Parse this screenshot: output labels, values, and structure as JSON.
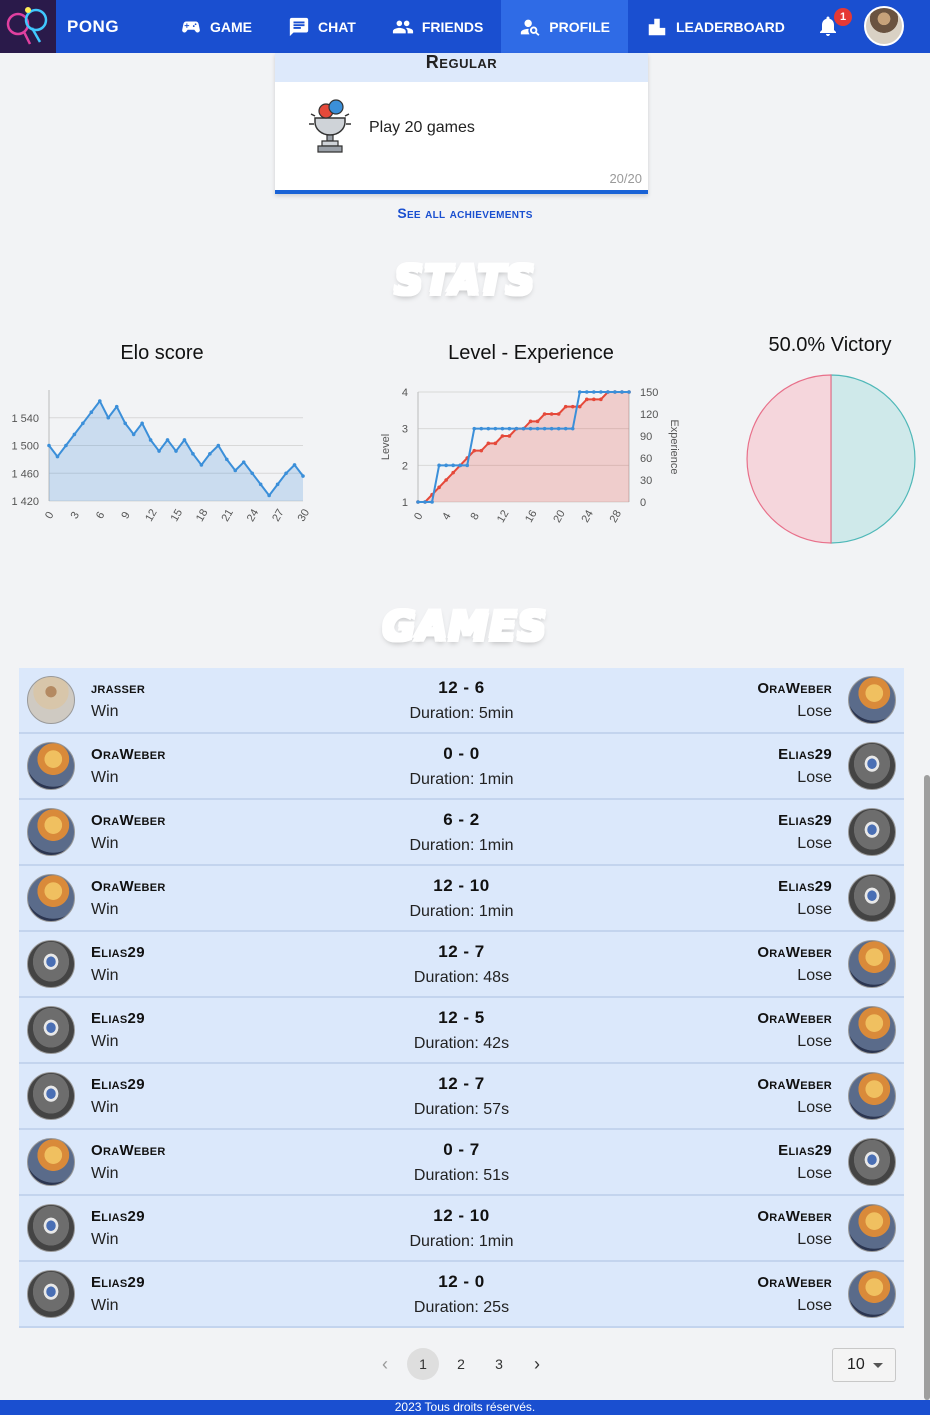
{
  "navbar": {
    "brand": "PONG",
    "items": [
      {
        "label": "GAME",
        "icon": "gamepad-icon"
      },
      {
        "label": "CHAT",
        "icon": "chat-icon"
      },
      {
        "label": "FRIENDS",
        "icon": "friends-icon"
      },
      {
        "label": "PROFILE",
        "icon": "profile-icon",
        "active": true
      },
      {
        "label": "LEADERBOARD",
        "icon": "leaderboard-icon"
      }
    ],
    "notification_count": "1"
  },
  "achievement": {
    "title": "Regular",
    "description": "Play 20 games",
    "progress": "20/20"
  },
  "see_all_label": "See all achievements",
  "stats_title": "STATS",
  "games_title": "GAMES",
  "chart_data": [
    {
      "type": "area",
      "title": "Elo score",
      "x": [
        0,
        1,
        2,
        3,
        4,
        5,
        6,
        7,
        8,
        9,
        10,
        11,
        12,
        13,
        14,
        15,
        16,
        17,
        18,
        19,
        20,
        21,
        22,
        23,
        24,
        25,
        26,
        27,
        28,
        29,
        30
      ],
      "values": [
        1500,
        1484,
        1500,
        1516,
        1532,
        1548,
        1564,
        1540,
        1556,
        1532,
        1516,
        1532,
        1508,
        1492,
        1508,
        1492,
        1508,
        1488,
        1472,
        1488,
        1500,
        1480,
        1464,
        1476,
        1460,
        1444,
        1428,
        1444,
        1460,
        1472,
        1456
      ],
      "xticks": [
        "0",
        "3",
        "6",
        "9",
        "12",
        "15",
        "18",
        "21",
        "24",
        "27",
        "30"
      ],
      "yticks": [
        "1 420",
        "1 460",
        "1 500",
        "1 540"
      ],
      "ylim": [
        1420,
        1580
      ]
    },
    {
      "type": "line",
      "title": "Level - Experience",
      "ylabel": "Level",
      "y2label": "Experience",
      "x": [
        0,
        1,
        2,
        3,
        4,
        5,
        6,
        7,
        8,
        9,
        10,
        11,
        12,
        13,
        14,
        15,
        16,
        17,
        18,
        19,
        20,
        21,
        22,
        23,
        24,
        25,
        26,
        27,
        28,
        29,
        30
      ],
      "xticks": [
        "0",
        "4",
        "8",
        "12",
        "16",
        "20",
        "24",
        "28"
      ],
      "yticks": [
        "1",
        "2",
        "3",
        "4"
      ],
      "y2ticks": [
        "0",
        "30",
        "60",
        "90",
        "120",
        "150"
      ],
      "series": [
        {
          "name": "Level",
          "color": "#3b8fd9",
          "values": [
            1,
            1,
            1,
            2,
            2,
            2,
            2,
            2,
            3,
            3,
            3,
            3,
            3,
            3,
            3,
            3,
            3,
            3,
            3,
            3,
            3,
            3,
            3,
            4,
            4,
            4,
            4,
            4,
            4,
            4,
            4
          ]
        },
        {
          "name": "Experience",
          "color": "#e5493a",
          "values": [
            0,
            0,
            10,
            20,
            30,
            40,
            50,
            60,
            70,
            70,
            80,
            80,
            90,
            90,
            100,
            100,
            110,
            110,
            120,
            120,
            120,
            130,
            130,
            130,
            140,
            140,
            140,
            150,
            150,
            150,
            150
          ]
        }
      ]
    },
    {
      "type": "pie",
      "title": "50.0% Victory",
      "values": [
        50,
        50
      ],
      "colors": [
        "#cfe9ea",
        "#f5d6dc"
      ]
    }
  ],
  "games": [
    {
      "left": "jrasser",
      "left_avatar": "jr",
      "left_result": "Win",
      "score": "12 - 6",
      "duration": "Duration: 5min",
      "right": "OraWeber",
      "right_avatar": "ora",
      "right_result": "Lose"
    },
    {
      "left": "OraWeber",
      "left_avatar": "ora",
      "left_result": "Win",
      "score": "0 - 0",
      "duration": "Duration: 1min",
      "right": "Elias29",
      "right_avatar": "elias",
      "right_result": "Lose"
    },
    {
      "left": "OraWeber",
      "left_avatar": "ora",
      "left_result": "Win",
      "score": "6 - 2",
      "duration": "Duration: 1min",
      "right": "Elias29",
      "right_avatar": "elias",
      "right_result": "Lose"
    },
    {
      "left": "OraWeber",
      "left_avatar": "ora",
      "left_result": "Win",
      "score": "12 - 10",
      "duration": "Duration: 1min",
      "right": "Elias29",
      "right_avatar": "elias",
      "right_result": "Lose"
    },
    {
      "left": "Elias29",
      "left_avatar": "elias",
      "left_result": "Win",
      "score": "12 - 7",
      "duration": "Duration: 48s",
      "right": "OraWeber",
      "right_avatar": "ora",
      "right_result": "Lose"
    },
    {
      "left": "Elias29",
      "left_avatar": "elias",
      "left_result": "Win",
      "score": "12 - 5",
      "duration": "Duration: 42s",
      "right": "OraWeber",
      "right_avatar": "ora",
      "right_result": "Lose"
    },
    {
      "left": "Elias29",
      "left_avatar": "elias",
      "left_result": "Win",
      "score": "12 - 7",
      "duration": "Duration: 57s",
      "right": "OraWeber",
      "right_avatar": "ora",
      "right_result": "Lose"
    },
    {
      "left": "OraWeber",
      "left_avatar": "ora",
      "left_result": "Win",
      "score": "0 - 7",
      "duration": "Duration: 51s",
      "right": "Elias29",
      "right_avatar": "elias",
      "right_result": "Lose"
    },
    {
      "left": "Elias29",
      "left_avatar": "elias",
      "left_result": "Win",
      "score": "12 - 10",
      "duration": "Duration: 1min",
      "right": "OraWeber",
      "right_avatar": "ora",
      "right_result": "Lose"
    },
    {
      "left": "Elias29",
      "left_avatar": "elias",
      "left_result": "Win",
      "score": "12 - 0",
      "duration": "Duration: 25s",
      "right": "OraWeber",
      "right_avatar": "ora",
      "right_result": "Lose"
    }
  ],
  "pagination": {
    "pages": [
      "1",
      "2",
      "3"
    ],
    "current": "1",
    "per_page": "10"
  },
  "footer": "2023 Tous droits réservés."
}
